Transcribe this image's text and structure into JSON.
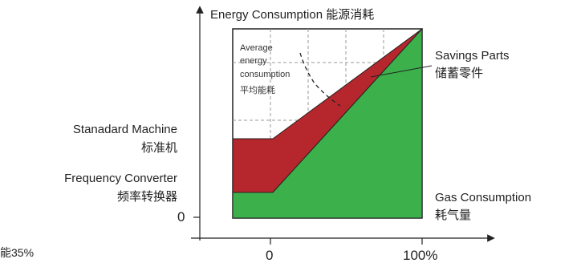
{
  "title": "Energy Consumption 能源消耗",
  "labels": {
    "standard_machine_en": "Stanadard Machine",
    "standard_machine_cn": "标准机",
    "frequency_converter_en": "Frequency Converter",
    "frequency_converter_cn": "频率转换器",
    "savings_parts_en": "Savings Parts",
    "savings_parts_cn": "储蓄零件",
    "gas_consumption_en": "Gas Consumption",
    "gas_consumption_cn": "耗气量",
    "average_line1": "Average",
    "average_line2": "energy",
    "average_line3": "consumption",
    "average_cn": "平均能耗",
    "corner_fragment": "能35%"
  },
  "axes": {
    "y_tick": "0",
    "x_ticks": [
      "0",
      "100%"
    ]
  },
  "colors": {
    "savings_fill": "#b5272d",
    "gas_fill": "#3cb04a",
    "outline": "#222222",
    "grid": "#9a9a9a"
  }
}
